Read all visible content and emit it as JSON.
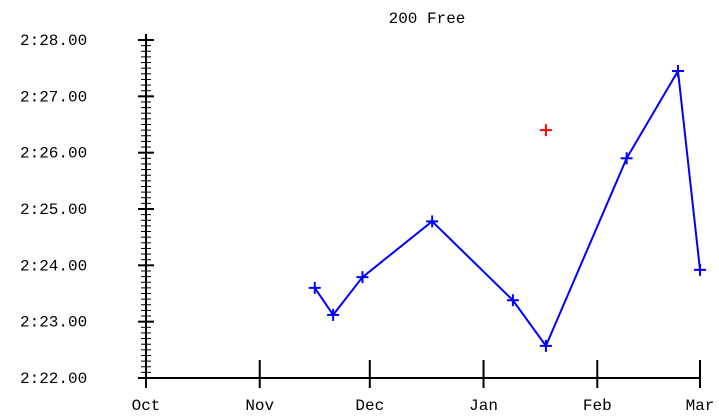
{
  "chart_data": {
    "type": "line",
    "title": "200 Free",
    "xlabel": "",
    "ylabel": "",
    "x_ticks": [
      "Oct",
      "Nov",
      "Dec",
      "Jan",
      "Feb",
      "Mar"
    ],
    "y_ticks": [
      "2:22.00",
      "2:23.00",
      "2:24.00",
      "2:25.00",
      "2:26.00",
      "2:27.00",
      "2:28.00"
    ],
    "ylim": [
      "2:22.00",
      "2:28.00"
    ],
    "xlim": [
      "Oct",
      "Mar"
    ],
    "grid": false,
    "series": [
      {
        "color": "#0000ff",
        "marker": "plus",
        "points": [
          {
            "x": "Nov 16",
            "y": "2:23.60"
          },
          {
            "x": "Nov 21",
            "y": "2:23.12"
          },
          {
            "x": "Nov 29",
            "y": "2:23.79"
          },
          {
            "x": "Dec 18",
            "y": "2:24.78"
          },
          {
            "x": "Jan 09",
            "y": "2:23.38"
          },
          {
            "x": "Jan 18",
            "y": "2:22.57"
          },
          {
            "x": "Feb 09",
            "y": "2:25.90"
          },
          {
            "x": "Feb 23",
            "y": "2:27.45"
          },
          {
            "x": "Mar 01",
            "y": "2:23.92"
          }
        ]
      },
      {
        "color": "#ff0000",
        "marker": "plus",
        "connected": false,
        "points": [
          {
            "x": "Jan 18",
            "y": "2:26.40"
          }
        ]
      }
    ]
  }
}
